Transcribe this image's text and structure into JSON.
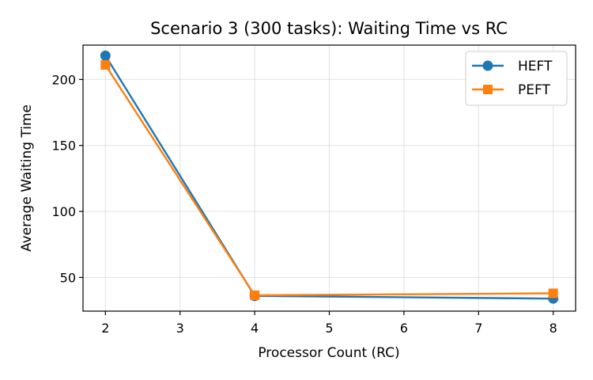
{
  "chart_data": {
    "type": "line",
    "title": "Scenario 3 (300 tasks): Waiting Time vs RC",
    "xlabel": "Processor Count (RC)",
    "ylabel": "Average Waiting Time",
    "x": [
      2,
      4,
      8
    ],
    "xlim": [
      1.7,
      8.3
    ],
    "ylim": [
      24.5,
      226
    ],
    "xticks": [
      "2",
      "3",
      "4",
      "5",
      "6",
      "7",
      "8"
    ],
    "yticks": [
      "50",
      "100",
      "150",
      "200"
    ],
    "grid": true,
    "legend_position": "top-right",
    "series": [
      {
        "name": "HEFT",
        "values": [
          218,
          36,
          34
        ],
        "color": "#1f77b4",
        "marker": "circle"
      },
      {
        "name": "PEFT",
        "values": [
          211,
          36.5,
          38
        ],
        "color": "#ff7f0e",
        "marker": "square"
      }
    ]
  }
}
